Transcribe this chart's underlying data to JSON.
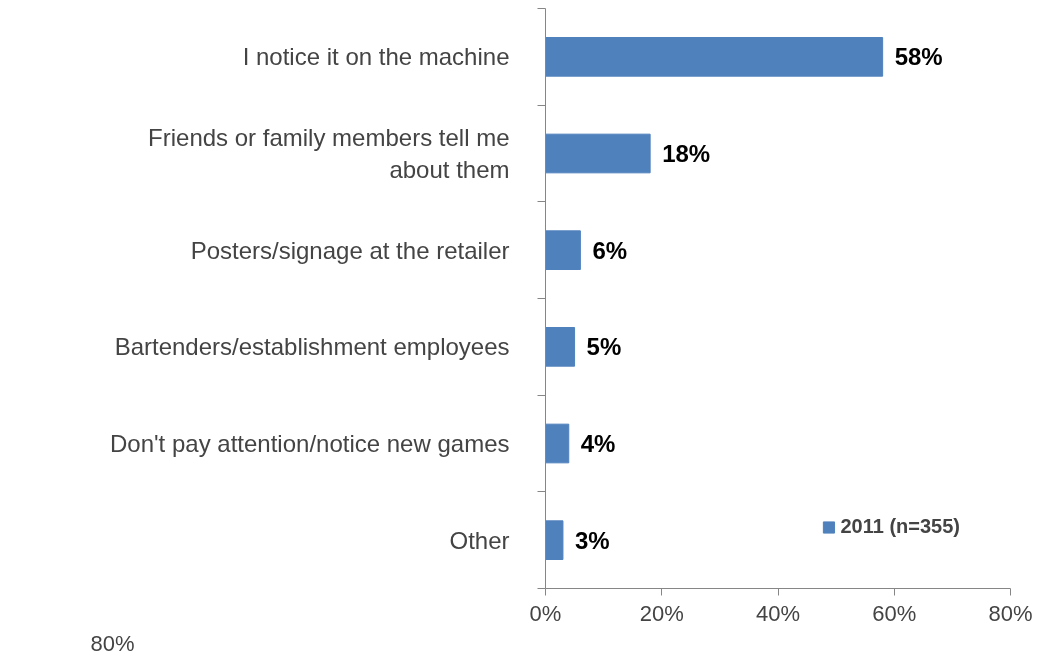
{
  "chart_data": {
    "type": "bar",
    "orientation": "horizontal",
    "categories": [
      "I notice it on the machine",
      "Friends or family members tell me about them",
      "Posters/signage at the retailer",
      "Bartenders/establishment employees",
      "Don't pay attention/notice new games",
      "Other"
    ],
    "series": [
      {
        "name": "2011 (n=355)",
        "color": "#4f81bd",
        "values": [
          58,
          18,
          6,
          5,
          4,
          3
        ],
        "value_labels": [
          "58%",
          "18%",
          "6%",
          "5%",
          "4%",
          "3%"
        ]
      }
    ],
    "xlim": [
      0,
      80
    ],
    "xticks": [
      {
        "value": 0,
        "label": "0%"
      },
      {
        "value": 20,
        "label": "20%"
      },
      {
        "value": 40,
        "label": "40%"
      },
      {
        "value": 60,
        "label": "60%"
      },
      {
        "value": 80,
        "label": "80%"
      }
    ],
    "legend": "bottom right",
    "grid": false,
    "annotations": [
      "80%"
    ]
  }
}
